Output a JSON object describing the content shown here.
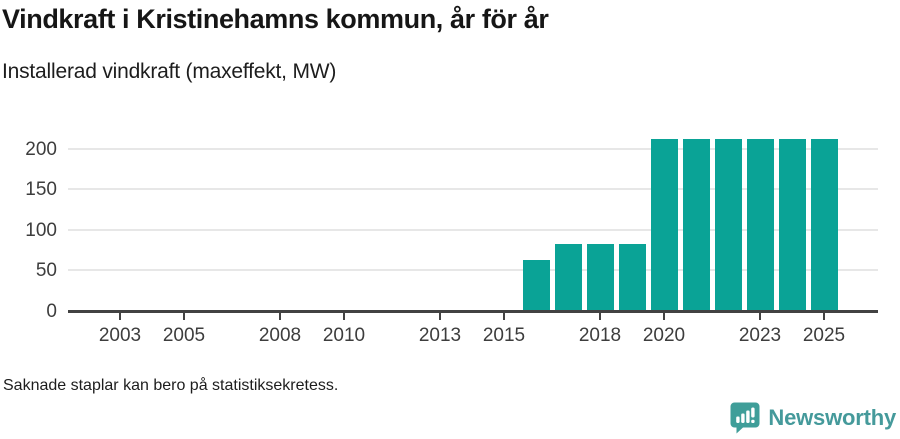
{
  "header": {
    "title": "Vindkraft i Kristinehamns kommun, år för år",
    "subtitle": "Installerad vindkraft (maxeffekt, MW)"
  },
  "footer": {
    "note": "Saknade staplar kan bero på statistiksekretess."
  },
  "branding": {
    "name": "Newsworthy",
    "icon": "newsworthy-chart-bubble-icon",
    "text_color": "#459a9b",
    "icon_color": "#3f9e99"
  },
  "chart_data": {
    "type": "bar",
    "title": "Vindkraft i Kristinehamns kommun, år för år",
    "subtitle": "Installerad vindkraft (maxeffekt, MW)",
    "xlabel": "",
    "ylabel": "Installerad vindkraft (maxeffekt, MW)",
    "x": [
      2002,
      2003,
      2004,
      2005,
      2006,
      2007,
      2008,
      2009,
      2010,
      2011,
      2012,
      2013,
      2014,
      2015,
      2016,
      2017,
      2018,
      2019,
      2020,
      2021,
      2022,
      2023,
      2024,
      2025
    ],
    "values": [
      null,
      null,
      null,
      null,
      null,
      null,
      null,
      null,
      null,
      null,
      null,
      null,
      null,
      null,
      63,
      82,
      82,
      82,
      212,
      212,
      212,
      212,
      212,
      212
    ],
    "missing_values_note": "Saknade staplar kan bero på statistiksekretess.",
    "ylim": [
      0,
      217
    ],
    "y_ticks": [
      0,
      50,
      100,
      150,
      200
    ],
    "x_tick_labels": [
      2003,
      2005,
      2008,
      2010,
      2013,
      2015,
      2018,
      2020,
      2023,
      2025
    ],
    "grid": true,
    "legend": false,
    "bar_color": "#0aa396",
    "grid_color": "#e7e7e7",
    "axis_color": "#424242",
    "tick_label_color": "#3d3d3d"
  }
}
